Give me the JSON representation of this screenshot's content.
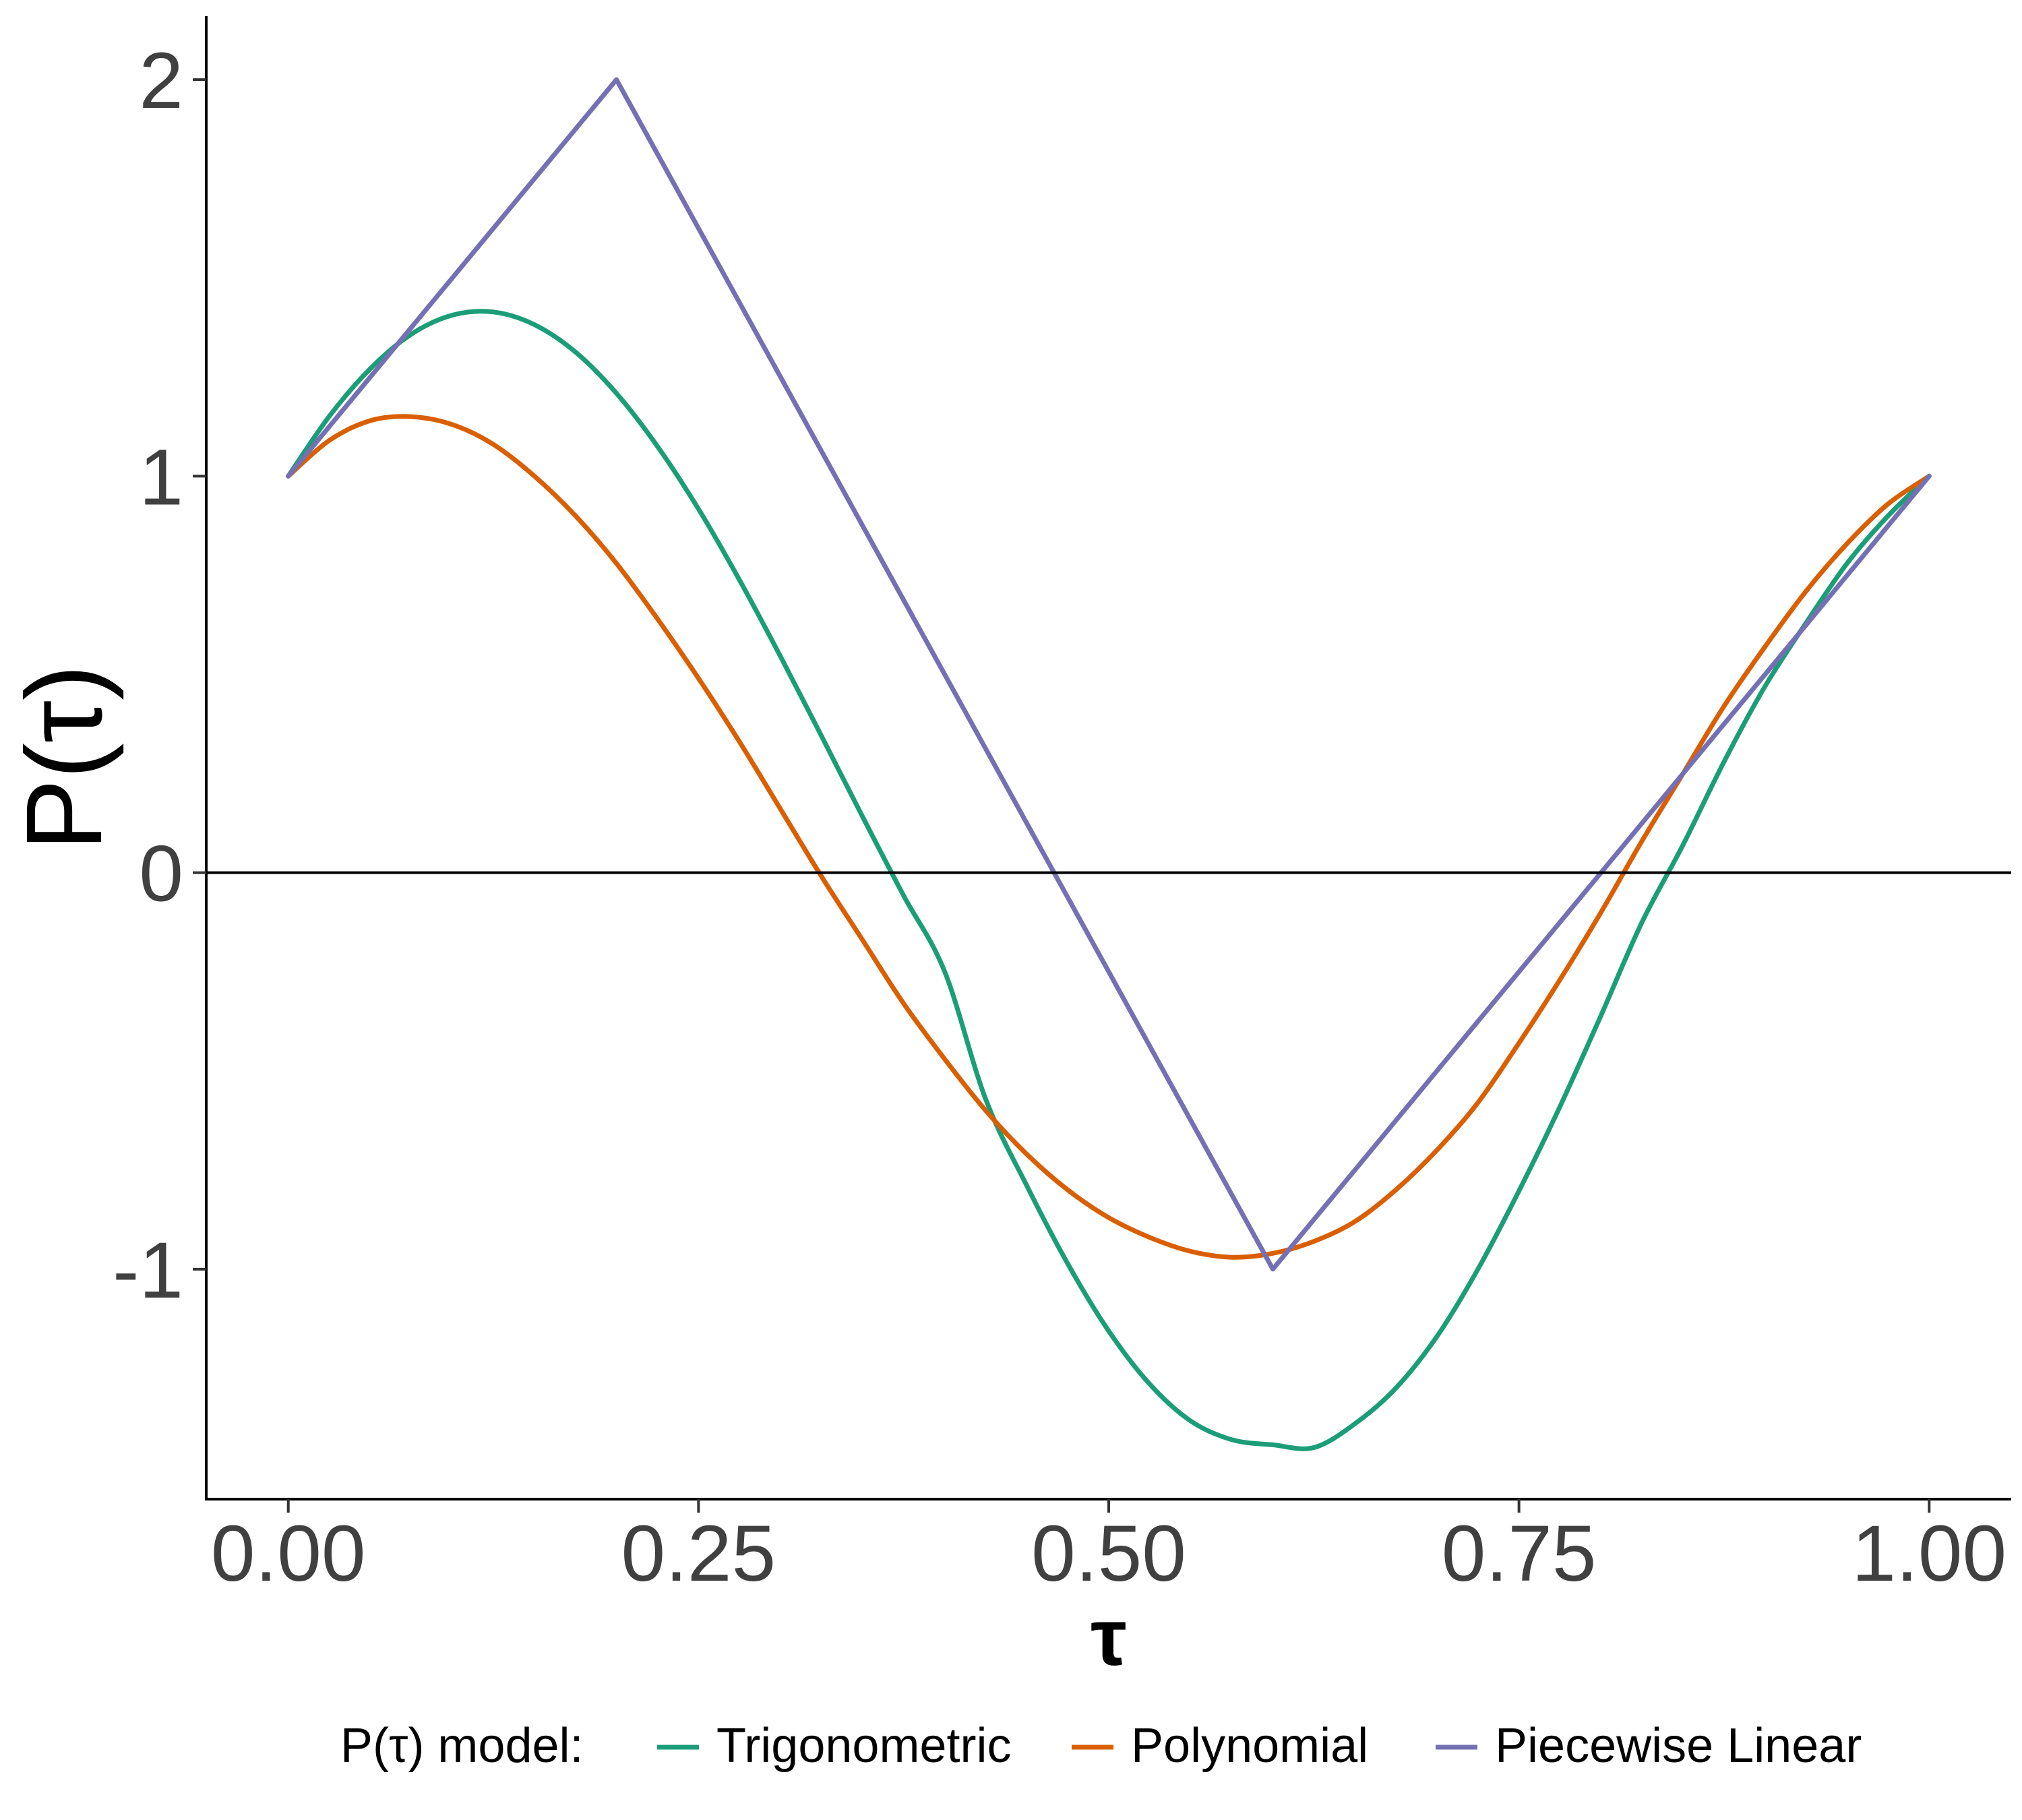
{
  "chart_data": {
    "type": "line",
    "xlabel": "τ",
    "ylabel": "P(τ)",
    "xlim": [
      -0.05,
      1.05
    ],
    "ylim": [
      -1.58,
      2.16
    ],
    "x_ticks": [
      0,
      0.25,
      0.5,
      0.75,
      1
    ],
    "x_tick_labels": [
      "0.00",
      "0.25",
      "0.50",
      "0.75",
      "1.00"
    ],
    "y_ticks": [
      -1,
      0,
      1,
      2
    ],
    "y_tick_labels": [
      "-1",
      "0",
      "1",
      "2"
    ],
    "reference_line_y": 0,
    "grid": false,
    "legend": {
      "title": "P(τ) model:",
      "position": "bottom",
      "entries": [
        "Trigonometric",
        "Polynomial",
        "Piecewise Linear"
      ]
    },
    "series": [
      {
        "name": "Trigonometric",
        "color": "#1b9e77",
        "x": [
          0,
          0.025,
          0.05,
          0.075,
          0.1,
          0.125,
          0.15,
          0.175,
          0.2,
          0.225,
          0.25,
          0.275,
          0.3,
          0.325,
          0.35,
          0.375,
          0.4,
          0.425,
          0.45,
          0.475,
          0.5,
          0.525,
          0.55,
          0.575,
          0.6,
          0.625,
          0.65,
          0.675,
          0.7,
          0.725,
          0.75,
          0.775,
          0.8,
          0.825,
          0.85,
          0.875,
          0.9,
          0.925,
          0.95,
          0.975,
          1
        ],
        "y": [
          1,
          1.151,
          1.271,
          1.358,
          1.406,
          1.414,
          1.382,
          1.313,
          1.209,
          1.075,
          0.917,
          0.738,
          0.545,
          0.344,
          0.141,
          -0.058,
          -0.249,
          -0.571,
          -0.789,
          -0.986,
          -1.156,
          -1.29,
          -1.383,
          -1.43,
          -1.443,
          -1.45,
          -1.39,
          -1.3,
          -1.17,
          -1.0,
          -0.803,
          -0.59,
          -0.36,
          -0.125,
          0.07,
          0.28,
          0.47,
          0.63,
          0.78,
          0.9,
          1
        ]
      },
      {
        "name": "Polynomial",
        "color": "#d95f02",
        "x": [
          0,
          0.025,
          0.05,
          0.075,
          0.1,
          0.125,
          0.15,
          0.175,
          0.2,
          0.225,
          0.25,
          0.275,
          0.3,
          0.325,
          0.35,
          0.375,
          0.4,
          0.425,
          0.45,
          0.475,
          0.5,
          0.525,
          0.55,
          0.575,
          0.6,
          0.625,
          0.65,
          0.675,
          0.7,
          0.725,
          0.75,
          0.775,
          0.8,
          0.825,
          0.85,
          0.875,
          0.9,
          0.925,
          0.95,
          0.975,
          1
        ],
        "y": [
          1,
          1.09,
          1.14,
          1.15,
          1.13,
          1.08,
          1.0,
          0.9,
          0.78,
          0.64,
          0.49,
          0.33,
          0.16,
          -0.01,
          -0.17,
          -0.33,
          -0.47,
          -0.6,
          -0.71,
          -0.8,
          -0.87,
          -0.92,
          -0.955,
          -0.97,
          -0.96,
          -0.93,
          -0.88,
          -0.8,
          -0.7,
          -0.58,
          -0.43,
          -0.27,
          -0.1,
          0.08,
          0.25,
          0.42,
          0.57,
          0.71,
          0.83,
          0.93,
          1
        ]
      },
      {
        "name": "Piecewise Linear",
        "color": "#7570b3",
        "x": [
          0,
          0.2,
          0.6,
          1
        ],
        "y": [
          1,
          2,
          -1,
          1
        ]
      }
    ]
  }
}
